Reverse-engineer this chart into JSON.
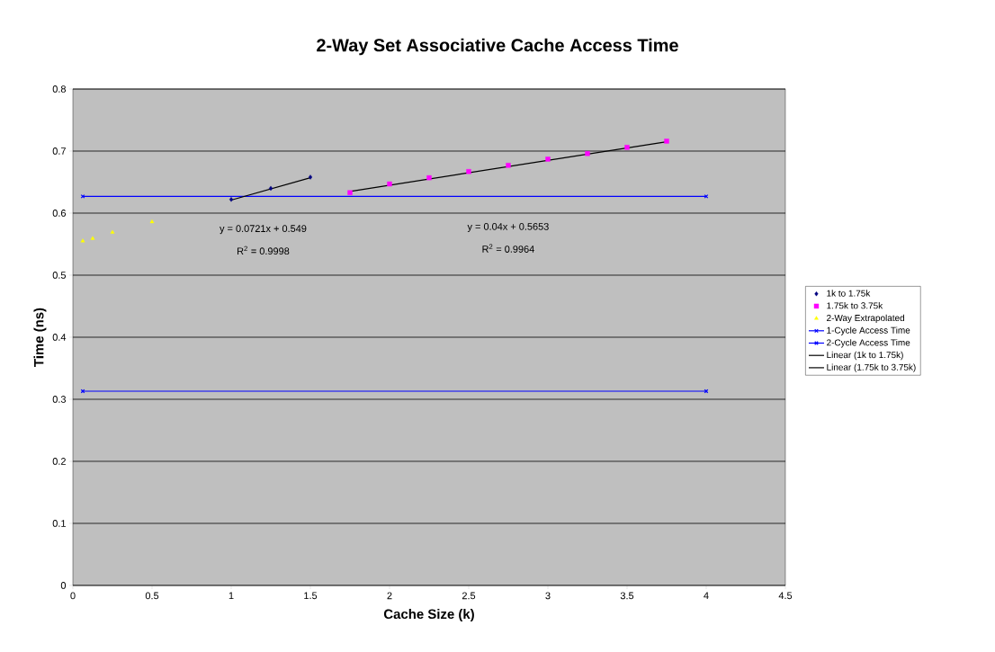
{
  "chart_data": {
    "type": "scatter",
    "title": "2-Way Set Associative Cache Access Time",
    "xlabel": "Cache Size (k)",
    "ylabel": "Time (ns)",
    "xlim": [
      0,
      4.5
    ],
    "ylim": [
      0,
      0.8
    ],
    "xticks": [
      0,
      0.5,
      1,
      1.5,
      2,
      2.5,
      3,
      3.5,
      4,
      4.5
    ],
    "yticks": [
      0,
      0.1,
      0.2,
      0.3,
      0.4,
      0.5,
      0.6,
      0.7,
      0.8
    ],
    "grid": "y",
    "legend": "right",
    "series": [
      {
        "name": "1k to 1.75k",
        "marker": "diamond",
        "color": "#000080",
        "x": [
          1,
          1.25,
          1.5
        ],
        "values": [
          0.622,
          0.64,
          0.658
        ]
      },
      {
        "name": "1.75k to 3.75k",
        "marker": "square",
        "color": "#ff00ff",
        "x": [
          1.75,
          2,
          2.25,
          2.5,
          2.75,
          3,
          3.25,
          3.5,
          3.75
        ],
        "values": [
          0.633,
          0.647,
          0.657,
          0.667,
          0.677,
          0.687,
          0.696,
          0.706,
          0.716
        ]
      },
      {
        "name": "2-Way Extrapolated",
        "marker": "triangle",
        "color": "#ffff00",
        "x": [
          0.0625,
          0.125,
          0.25,
          0.5
        ],
        "values": [
          0.555,
          0.559,
          0.569,
          0.586
        ]
      },
      {
        "name": "1-Cycle Access Time",
        "type": "line",
        "marker": "cross",
        "color": "#0000ff",
        "x": [
          0.0625,
          4
        ],
        "values": [
          0.313,
          0.313
        ]
      },
      {
        "name": "2-Cycle Access Time",
        "type": "line",
        "marker": "cross",
        "color": "#0000ff",
        "x": [
          0.0625,
          4
        ],
        "values": [
          0.627,
          0.627
        ]
      },
      {
        "name": "Linear (1k to 1.75k)",
        "type": "line",
        "marker": "none",
        "color": "#000000",
        "x": [
          1,
          1.5
        ],
        "values": [
          0.621,
          0.657
        ]
      },
      {
        "name": "Linear (1.75k to 3.75k)",
        "type": "line",
        "marker": "none",
        "color": "#000000",
        "x": [
          1.75,
          3.75
        ],
        "values": [
          0.635,
          0.715
        ]
      }
    ],
    "annotations": [
      "y = 0.0721x + 0.549",
      "R$^{2}$ = 0.9998",
      "y = 0.04x + 0.5653",
      "R$^{2}$ = 0.9964"
    ]
  }
}
